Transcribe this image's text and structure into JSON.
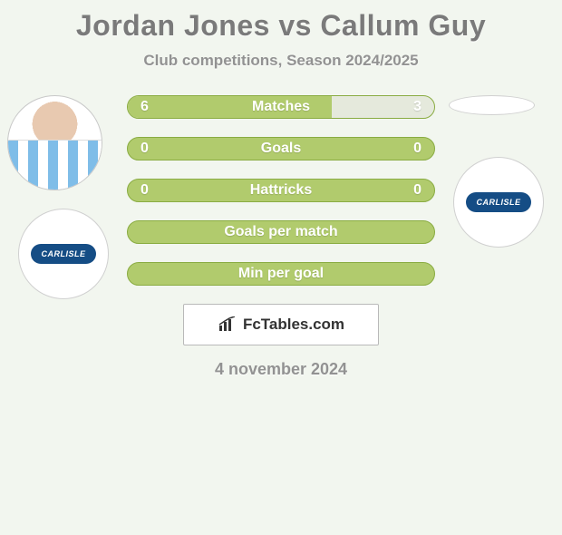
{
  "title": "Jordan Jones vs Callum Guy",
  "subtitle": "Club competitions, Season 2024/2025",
  "badge_text": "CARLISLE",
  "badge_pill_bg": "#154d85",
  "rows": [
    {
      "label": "Matches",
      "left": "6",
      "right": "3",
      "fill_color": "#b1cb6d",
      "bg_color": "#e5e9dc",
      "border_color": "#8aac42",
      "fill_pct": 66.7
    },
    {
      "label": "Goals",
      "left": "0",
      "right": "0",
      "fill_color": "#b1cb6d",
      "bg_color": "#b1cb6d",
      "border_color": "#8aac42",
      "fill_pct": 0
    },
    {
      "label": "Hattricks",
      "left": "0",
      "right": "0",
      "fill_color": "#b1cb6d",
      "bg_color": "#b1cb6d",
      "border_color": "#8aac42",
      "fill_pct": 0
    },
    {
      "label": "Goals per match",
      "left": "",
      "right": "",
      "fill_color": "#b1cb6d",
      "bg_color": "#b1cb6d",
      "border_color": "#8aac42",
      "fill_pct": 0
    },
    {
      "label": "Min per goal",
      "left": "",
      "right": "",
      "fill_color": "#b1cb6d",
      "bg_color": "#b1cb6d",
      "border_color": "#8aac42",
      "fill_pct": 0
    }
  ],
  "logo_text": "FcTables.com",
  "date": "4 november 2024",
  "background_color": "#f2f6ef"
}
